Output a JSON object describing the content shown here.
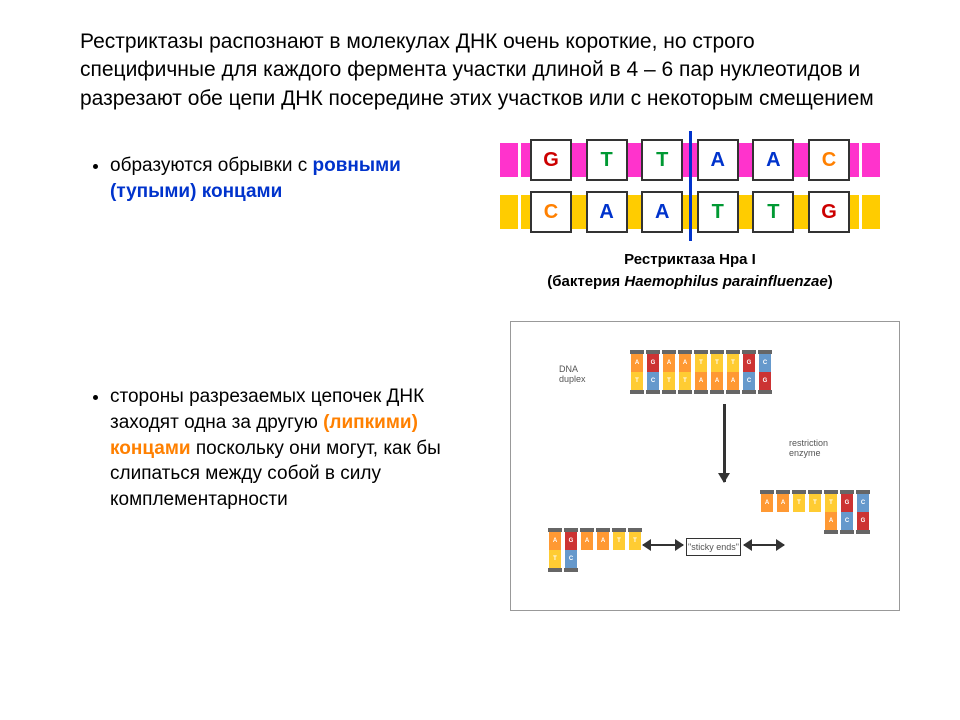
{
  "header": {
    "text": "Рестриктазы распознают в молекулах ДНК очень короткие, но строго специфичные для каждого фермента участки длиной в 4 – 6 пар нуклеотидов и разрезают обе цепи ДНК посередине этих участков или с некоторым смещением"
  },
  "bullets": {
    "b1_pre": "образуются обрывки с ",
    "b1_emph": "ровными (тупыми) концами",
    "b1_emph_color": "#0033cc",
    "b2_pre": "стороны разрезаемых цепочек ДНК заходят одна за другую ",
    "b2_emph": "(липкими) концами",
    "b2_emph_color": "#ff8000",
    "b2_post": " поскольку они могут, как бы слипаться между собой в силу комплементарности"
  },
  "diagram1": {
    "type": "dna-blunt-cut",
    "strand_top_color": "#ff33cc",
    "strand_bot_color": "#ffcc00",
    "box_border": "#333333",
    "box_bg": "#ffffff",
    "cut_color": "#0033cc",
    "top_bases": [
      "G",
      "T",
      "T",
      "A",
      "A",
      "C"
    ],
    "bot_bases": [
      "C",
      "A",
      "A",
      "T",
      "T",
      "G"
    ],
    "base_colors": {
      "G": "#cc0000",
      "T": "#009933",
      "A": "#0033cc",
      "C": "#ff8000"
    },
    "caption_line1": "Рестриктаза Hpa I",
    "caption_line2_pre": "(бактерия ",
    "caption_line2_it": "Haemophilus parainfluenzae",
    "caption_line2_post": ")"
  },
  "diagram2": {
    "type": "dna-sticky-ends",
    "border_color": "#999999",
    "labels": {
      "duplex": "DNA\nduplex",
      "enzyme": "restriction\nenzyme",
      "sticky": "\"sticky ends\""
    },
    "colors": {
      "A": "#ff9933",
      "T": "#ffcc33",
      "G": "#cc3333",
      "C": "#6699cc",
      "rail": "#666666",
      "arrow": "#333333"
    },
    "top_helix_top": [
      "A",
      "G",
      "A",
      "A",
      "T",
      "T",
      "T",
      "G",
      "C"
    ],
    "top_helix_bot": [
      "T",
      "C",
      "T",
      "T",
      "A",
      "A",
      "A",
      "C",
      "G"
    ],
    "bl_helix_top": [
      "A",
      "G",
      "A",
      "A",
      "T",
      "T"
    ],
    "bl_helix_bot": [
      "T",
      "C",
      "T",
      "T",
      "A",
      "A"
    ],
    "bl_overhang_side": "right",
    "bl_overhang_len": 4,
    "br_helix_top": [
      "A",
      "A",
      "T",
      "T",
      "T",
      "G",
      "C"
    ],
    "br_helix_bot": [
      "T",
      "T",
      "A",
      "A",
      "A",
      "C",
      "G"
    ],
    "br_overhang_side": "left",
    "br_overhang_len": 4
  }
}
